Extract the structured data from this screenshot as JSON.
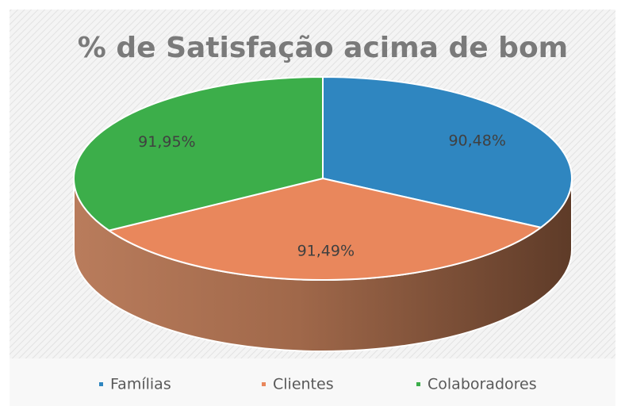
{
  "chart_data": {
    "type": "pie",
    "title": "% de Satisfação acima de bom",
    "categories": [
      "Famílias",
      "Clientes",
      "Colaboradores"
    ],
    "values": [
      90.48,
      91.49,
      91.95
    ],
    "value_labels": [
      "90,48%",
      "91,49%",
      "91,95%"
    ],
    "colors": [
      "#2f86c0",
      "#e9875c",
      "#3cae4a"
    ],
    "legend": "bottom"
  }
}
